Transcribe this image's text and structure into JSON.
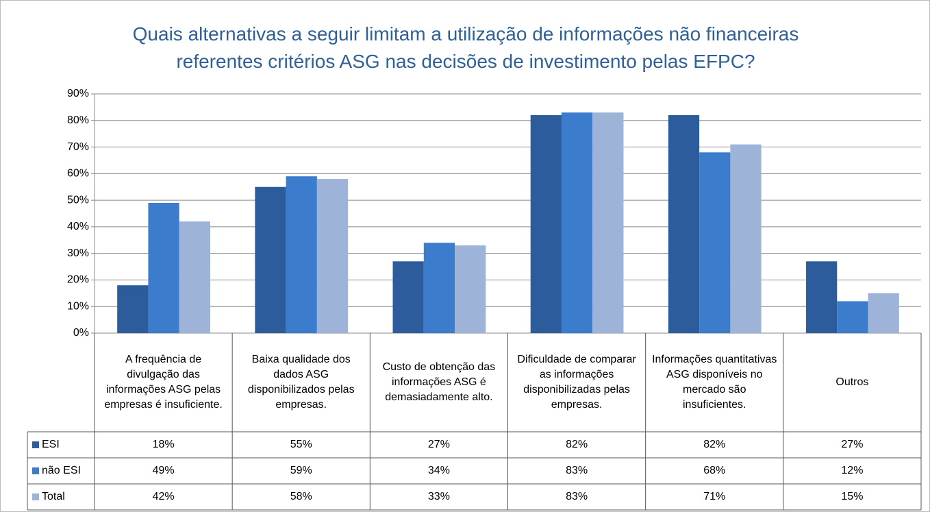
{
  "chart_data": {
    "type": "bar",
    "title": "Quais alternativas a seguir limitam a utilização de informações não financeiras referentes critérios ASG nas decisões de investimento pelas EFPC?",
    "categories": [
      "A frequência de divulgação das informações ASG pelas empresas é insuficiente.",
      "Baixa qualidade dos dados ASG disponibilizados pelas empresas.",
      "Custo de obtenção das informações ASG é demasiadamente alto.",
      "Dificuldade de comparar as informações disponibilizadas pelas empresas.",
      "Informações quantitativas ASG disponíveis no mercado são insuficientes.",
      "Outros"
    ],
    "series": [
      {
        "name": "ESI",
        "color": "#2c5c9c",
        "values": [
          18,
          55,
          27,
          82,
          82,
          27
        ],
        "value_labels": [
          "18%",
          "55%",
          "27%",
          "82%",
          "82%",
          "27%"
        ]
      },
      {
        "name": "não ESI",
        "color": "#3b7dcc",
        "values": [
          49,
          59,
          34,
          83,
          68,
          12
        ],
        "value_labels": [
          "49%",
          "59%",
          "34%",
          "83%",
          "68%",
          "12%"
        ]
      },
      {
        "name": "Total",
        "color": "#9db3d8",
        "values": [
          42,
          58,
          33,
          83,
          71,
          15
        ],
        "value_labels": [
          "42%",
          "58%",
          "33%",
          "83%",
          "71%",
          "15%"
        ]
      }
    ],
    "ylim": [
      0,
      90
    ],
    "yticks": [
      {
        "value": 0,
        "label": "0%"
      },
      {
        "value": 10,
        "label": "10%"
      },
      {
        "value": 20,
        "label": "20%"
      },
      {
        "value": 30,
        "label": "30%"
      },
      {
        "value": 40,
        "label": "40%"
      },
      {
        "value": 50,
        "label": "50%"
      },
      {
        "value": 60,
        "label": "60%"
      },
      {
        "value": 70,
        "label": "70%"
      },
      {
        "value": 80,
        "label": "80%"
      },
      {
        "value": 90,
        "label": "90%"
      }
    ],
    "grid": true,
    "data_table": true
  }
}
